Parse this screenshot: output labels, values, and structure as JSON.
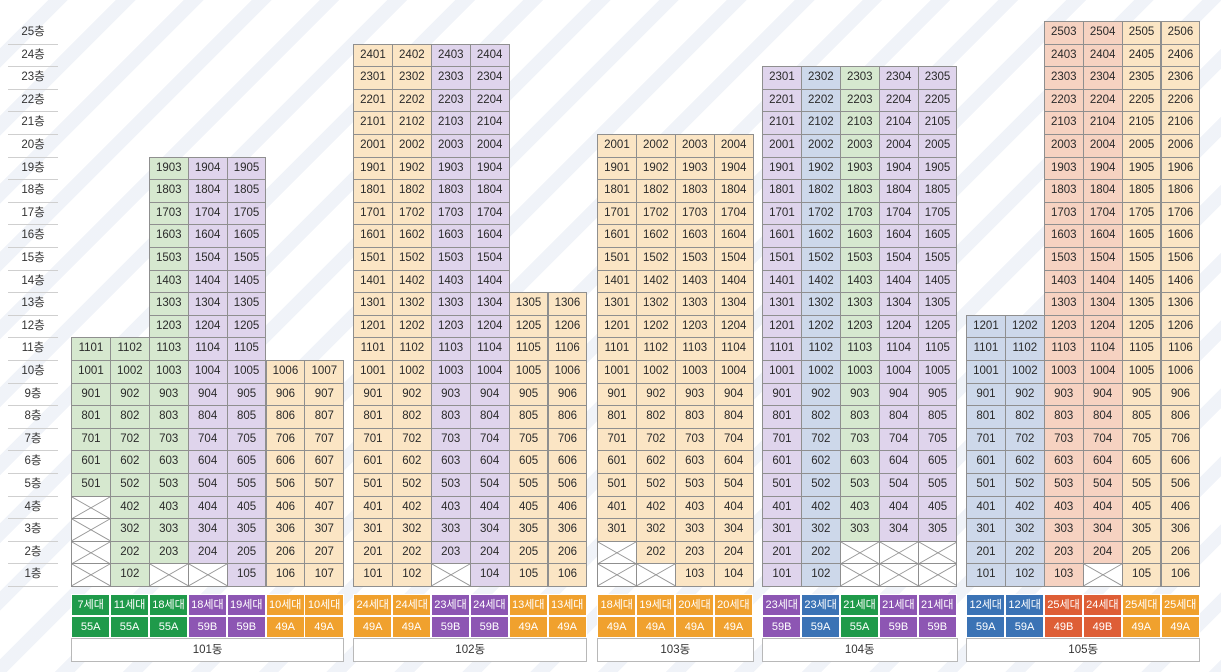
{
  "floors": [
    "1층",
    "2층",
    "3층",
    "4층",
    "5층",
    "6층",
    "7층",
    "8층",
    "9층",
    "10층",
    "11층",
    "12층",
    "13층",
    "14층",
    "15층",
    "16층",
    "17층",
    "18층",
    "19층",
    "20층",
    "21층",
    "22층",
    "23층",
    "24층",
    "25층"
  ],
  "colors": {
    "green_cell": "#d6e8cf",
    "purple_cell": "#dfd4ec",
    "orange_cell": "#fbe5c4",
    "blue_cell": "#cdd8ea",
    "red_cell": "#f6d2c1",
    "green_tag": "#1f9a4a",
    "purple_tag": "#8d56b3",
    "orange_tag": "#f0a12e",
    "blue_tag": "#3b73b5",
    "red_tag": "#de5e36"
  },
  "buildings": [
    {
      "name": "101동",
      "columns": [
        {
          "color": "green",
          "top": 11,
          "empty": [
            1,
            2,
            3,
            4
          ],
          "households": "7세대",
          "unit_type": "55A"
        },
        {
          "color": "green",
          "top": 11,
          "empty": [],
          "households": "11세대",
          "unit_type": "55A"
        },
        {
          "color": "green",
          "top": 19,
          "empty": [
            1
          ],
          "households": "18세대",
          "unit_type": "55A"
        },
        {
          "color": "purple",
          "top": 19,
          "empty": [
            1
          ],
          "households": "18세대",
          "unit_type": "59B"
        },
        {
          "color": "purple",
          "top": 19,
          "empty": [],
          "households": "19세대",
          "unit_type": "59B"
        },
        {
          "color": "orange",
          "top": 10,
          "empty": [],
          "households": "10세대",
          "unit_type": "49A"
        },
        {
          "color": "orange",
          "top": 10,
          "empty": [],
          "households": "10세대",
          "unit_type": "49A"
        }
      ]
    },
    {
      "name": "102동",
      "columns": [
        {
          "color": "orange",
          "top": 24,
          "empty": [],
          "households": "24세대",
          "unit_type": "49A"
        },
        {
          "color": "orange",
          "top": 24,
          "empty": [],
          "households": "24세대",
          "unit_type": "49A"
        },
        {
          "color": "purple",
          "top": 24,
          "empty": [
            1
          ],
          "households": "23세대",
          "unit_type": "59B"
        },
        {
          "color": "purple",
          "top": 24,
          "empty": [],
          "households": "24세대",
          "unit_type": "59B"
        },
        {
          "color": "orange",
          "top": 13,
          "empty": [],
          "households": "13세대",
          "unit_type": "49A"
        },
        {
          "color": "orange",
          "top": 13,
          "empty": [],
          "households": "13세대",
          "unit_type": "49A"
        }
      ]
    },
    {
      "name": "103동",
      "columns": [
        {
          "color": "orange",
          "top": 20,
          "empty": [
            1,
            2
          ],
          "households": "18세대",
          "unit_type": "49A"
        },
        {
          "color": "orange",
          "top": 20,
          "empty": [
            1
          ],
          "households": "19세대",
          "unit_type": "49A"
        },
        {
          "color": "orange",
          "top": 20,
          "empty": [],
          "households": "20세대",
          "unit_type": "49A"
        },
        {
          "color": "orange",
          "top": 20,
          "empty": [],
          "households": "20세대",
          "unit_type": "49A"
        }
      ]
    },
    {
      "name": "104동",
      "columns": [
        {
          "color": "purple",
          "top": 23,
          "empty": [],
          "households": "23세대",
          "unit_type": "59B"
        },
        {
          "color": "blue",
          "top": 23,
          "empty": [],
          "households": "23세대",
          "unit_type": "59A"
        },
        {
          "color": "green",
          "top": 23,
          "empty": [
            1,
            2
          ],
          "households": "21세대",
          "unit_type": "55A"
        },
        {
          "color": "purple",
          "top": 23,
          "empty": [
            1,
            2
          ],
          "households": "21세대",
          "unit_type": "59B"
        },
        {
          "color": "purple",
          "top": 23,
          "empty": [
            1,
            2
          ],
          "households": "21세대",
          "unit_type": "59B"
        }
      ]
    },
    {
      "name": "105동",
      "columns": [
        {
          "color": "blue",
          "top": 12,
          "empty": [],
          "households": "12세대",
          "unit_type": "59A"
        },
        {
          "color": "blue",
          "top": 12,
          "empty": [],
          "households": "12세대",
          "unit_type": "59A"
        },
        {
          "color": "red",
          "top": 25,
          "empty": [],
          "households": "25세대",
          "unit_type": "49B"
        },
        {
          "color": "red",
          "top": 25,
          "empty": [
            1
          ],
          "households": "24세대",
          "unit_type": "49B"
        },
        {
          "color": "orange",
          "top": 25,
          "empty": [],
          "households": "25세대",
          "unit_type": "49A"
        },
        {
          "color": "orange",
          "top": 25,
          "empty": [],
          "households": "25세대",
          "unit_type": "49A"
        }
      ]
    }
  ]
}
